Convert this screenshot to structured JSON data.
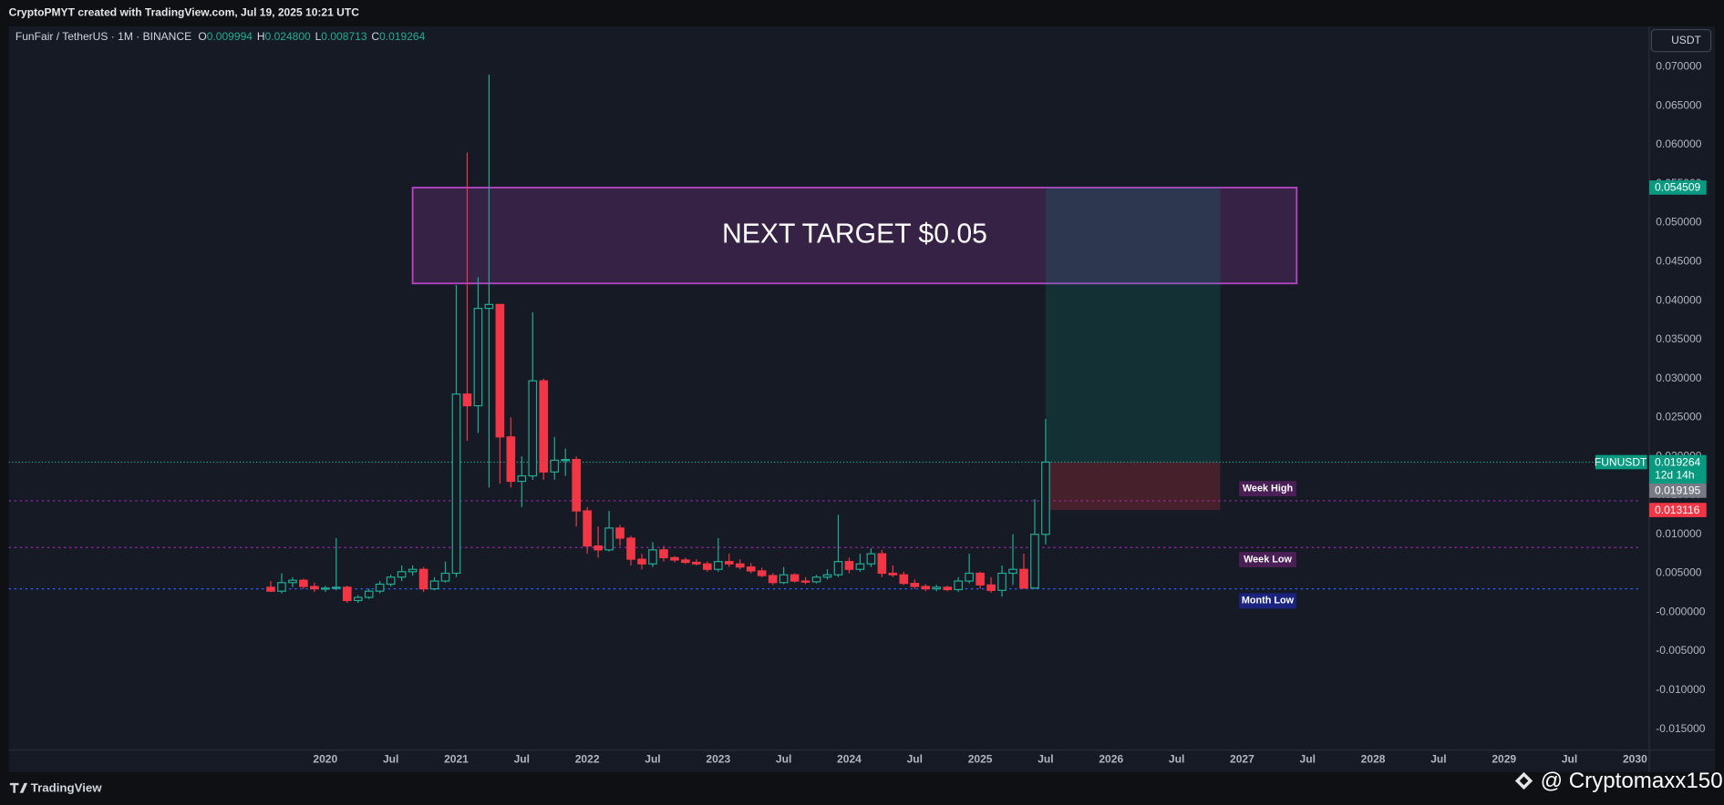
{
  "chart_data": {
    "type": "candlestick",
    "header": "CryptoPMYT created with TradingView.com, Jul 19, 2025 10:21 UTC",
    "title": "FunFair / TetherUS · 1M · BINANCE",
    "ohlc_keys": [
      "O",
      "H",
      "L",
      "C"
    ],
    "ohlc_labels": [
      "0.009994",
      "0.024800",
      "0.008713",
      "0.019264"
    ],
    "currency_button": "USDT",
    "x": [
      "2019-08",
      "2019-09",
      "2019-10",
      "2019-11",
      "2019-12",
      "2020-01",
      "2020-02",
      "2020-03",
      "2020-04",
      "2020-05",
      "2020-06",
      "2020-07",
      "2020-08",
      "2020-09",
      "2020-10",
      "2020-11",
      "2020-12",
      "2021-01",
      "2021-02",
      "2021-03",
      "2021-04",
      "2021-05",
      "2021-06",
      "2021-07",
      "2021-08",
      "2021-09",
      "2021-10",
      "2021-11",
      "2021-12",
      "2022-01",
      "2022-02",
      "2022-03",
      "2022-04",
      "2022-05",
      "2022-06",
      "2022-07",
      "2022-08",
      "2022-09",
      "2022-10",
      "2022-11",
      "2022-12",
      "2023-01",
      "2023-02",
      "2023-03",
      "2023-04",
      "2023-05",
      "2023-06",
      "2023-07",
      "2023-08",
      "2023-09",
      "2023-10",
      "2023-11",
      "2023-12",
      "2024-01",
      "2024-02",
      "2024-03",
      "2024-04",
      "2024-05",
      "2024-06",
      "2024-07",
      "2024-08",
      "2024-09",
      "2024-10",
      "2024-11",
      "2024-12",
      "2025-01",
      "2025-02",
      "2025-03",
      "2025-04",
      "2025-05",
      "2025-06",
      "2025-07"
    ],
    "series": [
      {
        "name": "FUNUSDT",
        "up_color": "#22ab94",
        "down_color": "#f23645",
        "open": [
          0.0032,
          0.0027,
          0.0038,
          0.0041,
          0.0033,
          0.003,
          0.0031,
          0.0032,
          0.0015,
          0.0019,
          0.0027,
          0.0036,
          0.0045,
          0.0052,
          0.0055,
          0.003,
          0.004,
          0.005,
          0.028,
          0.0265,
          0.039,
          0.0395,
          0.0225,
          0.0168,
          0.0175,
          0.0297,
          0.018,
          0.0195,
          0.0196,
          0.013,
          0.0085,
          0.008,
          0.0108,
          0.0095,
          0.0068,
          0.0062,
          0.008,
          0.007,
          0.0067,
          0.0064,
          0.0062,
          0.0055,
          0.0065,
          0.0062,
          0.0058,
          0.0053,
          0.0047,
          0.0038,
          0.0048,
          0.004,
          0.0039,
          0.0045,
          0.0048,
          0.0065,
          0.0055,
          0.0062,
          0.0075,
          0.005,
          0.0048,
          0.0037,
          0.0033,
          0.003,
          0.0032,
          0.0029,
          0.004,
          0.005,
          0.0035,
          0.0028,
          0.005,
          0.0055,
          0.0031,
          0.009994
        ],
        "high": [
          0.004,
          0.005,
          0.0045,
          0.0043,
          0.0038,
          0.0034,
          0.0095,
          0.0034,
          0.0022,
          0.003,
          0.004,
          0.0048,
          0.006,
          0.006,
          0.0058,
          0.0045,
          0.0065,
          0.042,
          0.059,
          0.043,
          0.069,
          0.0395,
          0.025,
          0.02,
          0.0385,
          0.03,
          0.0225,
          0.021,
          0.02,
          0.0135,
          0.011,
          0.013,
          0.0112,
          0.0098,
          0.0075,
          0.009,
          0.0085,
          0.0072,
          0.007,
          0.0068,
          0.0065,
          0.0095,
          0.0075,
          0.0068,
          0.0063,
          0.0057,
          0.005,
          0.0058,
          0.005,
          0.0045,
          0.0048,
          0.0055,
          0.0125,
          0.007,
          0.0075,
          0.0082,
          0.008,
          0.006,
          0.0052,
          0.0042,
          0.0036,
          0.0035,
          0.0034,
          0.0045,
          0.0075,
          0.0052,
          0.0045,
          0.006,
          0.01,
          0.0075,
          0.0145,
          0.0248
        ],
        "low": [
          0.0026,
          0.0024,
          0.0032,
          0.003,
          0.0026,
          0.0026,
          0.0028,
          0.0012,
          0.0012,
          0.0017,
          0.0024,
          0.0033,
          0.004,
          0.0047,
          0.0026,
          0.0028,
          0.0038,
          0.0045,
          0.022,
          0.023,
          0.016,
          0.0165,
          0.016,
          0.0135,
          0.017,
          0.017,
          0.017,
          0.0175,
          0.011,
          0.0075,
          0.007,
          0.0078,
          0.0085,
          0.006,
          0.0055,
          0.0058,
          0.0065,
          0.0064,
          0.0062,
          0.006,
          0.0052,
          0.0052,
          0.0058,
          0.0055,
          0.005,
          0.0045,
          0.0035,
          0.0036,
          0.0038,
          0.0036,
          0.0037,
          0.0042,
          0.0045,
          0.005,
          0.0052,
          0.0058,
          0.0045,
          0.0045,
          0.0035,
          0.003,
          0.0027,
          0.0027,
          0.0027,
          0.0026,
          0.0037,
          0.003,
          0.0025,
          0.002,
          0.0035,
          0.003,
          0.003,
          0.008713
        ],
        "close": [
          0.0027,
          0.0038,
          0.0041,
          0.0033,
          0.003,
          0.0031,
          0.0032,
          0.0015,
          0.0019,
          0.0027,
          0.0036,
          0.0045,
          0.0052,
          0.0055,
          0.003,
          0.004,
          0.005,
          0.028,
          0.0265,
          0.039,
          0.0395,
          0.0225,
          0.0168,
          0.0175,
          0.0297,
          0.018,
          0.0195,
          0.0196,
          0.013,
          0.0085,
          0.008,
          0.0108,
          0.0095,
          0.0068,
          0.0062,
          0.008,
          0.007,
          0.0067,
          0.0064,
          0.0062,
          0.0055,
          0.0065,
          0.0062,
          0.0058,
          0.0053,
          0.0047,
          0.0038,
          0.0048,
          0.004,
          0.0039,
          0.0045,
          0.0048,
          0.0065,
          0.0055,
          0.0062,
          0.0075,
          0.005,
          0.0048,
          0.0037,
          0.0033,
          0.003,
          0.0032,
          0.0029,
          0.004,
          0.005,
          0.0035,
          0.0028,
          0.005,
          0.0055,
          0.0031,
          0.01,
          0.019264
        ]
      }
    ],
    "countdown": "12d 14h",
    "price_marker": 0.019195,
    "ylim": [
      -0.0177,
      0.0752
    ],
    "yticks": [
      {
        "value": 0.07,
        "label": "0.070000"
      },
      {
        "value": 0.065,
        "label": "0.065000"
      },
      {
        "value": 0.06,
        "label": "0.060000"
      },
      {
        "value": 0.055,
        "label": "0.055000"
      },
      {
        "value": 0.05,
        "label": "0.050000"
      },
      {
        "value": 0.045,
        "label": "0.045000"
      },
      {
        "value": 0.04,
        "label": "0.040000"
      },
      {
        "value": 0.035,
        "label": "0.035000"
      },
      {
        "value": 0.03,
        "label": "0.030000"
      },
      {
        "value": 0.025,
        "label": "0.025000"
      },
      {
        "value": 0.02,
        "label": "0.020000"
      },
      {
        "value": 0.015,
        "label": "0.015000"
      },
      {
        "value": 0.01,
        "label": "0.010000"
      },
      {
        "value": 0.005,
        "label": "0.005000"
      },
      {
        "value": 0,
        "label": "-0.000000"
      },
      {
        "value": -0.005,
        "label": "-0.005000"
      },
      {
        "value": -0.01,
        "label": "-0.010000"
      },
      {
        "value": -0.015,
        "label": "-0.015000"
      }
    ],
    "xlim": [
      "2017-08",
      "2030-02"
    ],
    "xticks": [
      {
        "value": "2020-01",
        "label": "2020"
      },
      {
        "value": "2020-07",
        "label": "Jul"
      },
      {
        "value": "2021-01",
        "label": "2021"
      },
      {
        "value": "2021-07",
        "label": "Jul"
      },
      {
        "value": "2022-01",
        "label": "2022"
      },
      {
        "value": "2022-07",
        "label": "Jul"
      },
      {
        "value": "2023-01",
        "label": "2023"
      },
      {
        "value": "2023-07",
        "label": "Jul"
      },
      {
        "value": "2024-01",
        "label": "2024"
      },
      {
        "value": "2024-07",
        "label": "Jul"
      },
      {
        "value": "2025-01",
        "label": "2025"
      },
      {
        "value": "2025-07",
        "label": "Jul"
      },
      {
        "value": "2026-01",
        "label": "2026"
      },
      {
        "value": "2026-07",
        "label": "Jul"
      },
      {
        "value": "2027-01",
        "label": "2027"
      },
      {
        "value": "2027-07",
        "label": "Jul"
      },
      {
        "value": "2028-01",
        "label": "2028"
      },
      {
        "value": "2028-07",
        "label": "Jul"
      },
      {
        "value": "2029-01",
        "label": "2029"
      },
      {
        "value": "2029-07",
        "label": "Jul"
      },
      {
        "value": "2030-01",
        "label": "2030"
      }
    ],
    "target_box": {
      "text": "NEXT TARGET $0.05",
      "top": 0.0545,
      "bottom": 0.0422,
      "x": [
        "2020-09",
        "2027-06"
      ],
      "color": "#b845c8"
    },
    "position": {
      "target": 0.054509,
      "stop": 0.013116,
      "x": [
        "2025-07",
        "2026-11"
      ],
      "profit_color": "#089981",
      "loss_color": "#f23645"
    },
    "levels": [
      {
        "label": "Week High",
        "value": 0.0143,
        "color": "#9c27b0",
        "label_bg": "#4a1f55"
      },
      {
        "label": "Week Low",
        "value": 0.0083,
        "color": "#9c27b0",
        "label_bg": "#4a1f55"
      },
      {
        "label": "Month Low",
        "value": 0.003,
        "color": "#2962ff",
        "label_bg": "#1a237e"
      }
    ],
    "footer": "TradingView",
    "watermark": "@ Cryptomaxx150"
  }
}
